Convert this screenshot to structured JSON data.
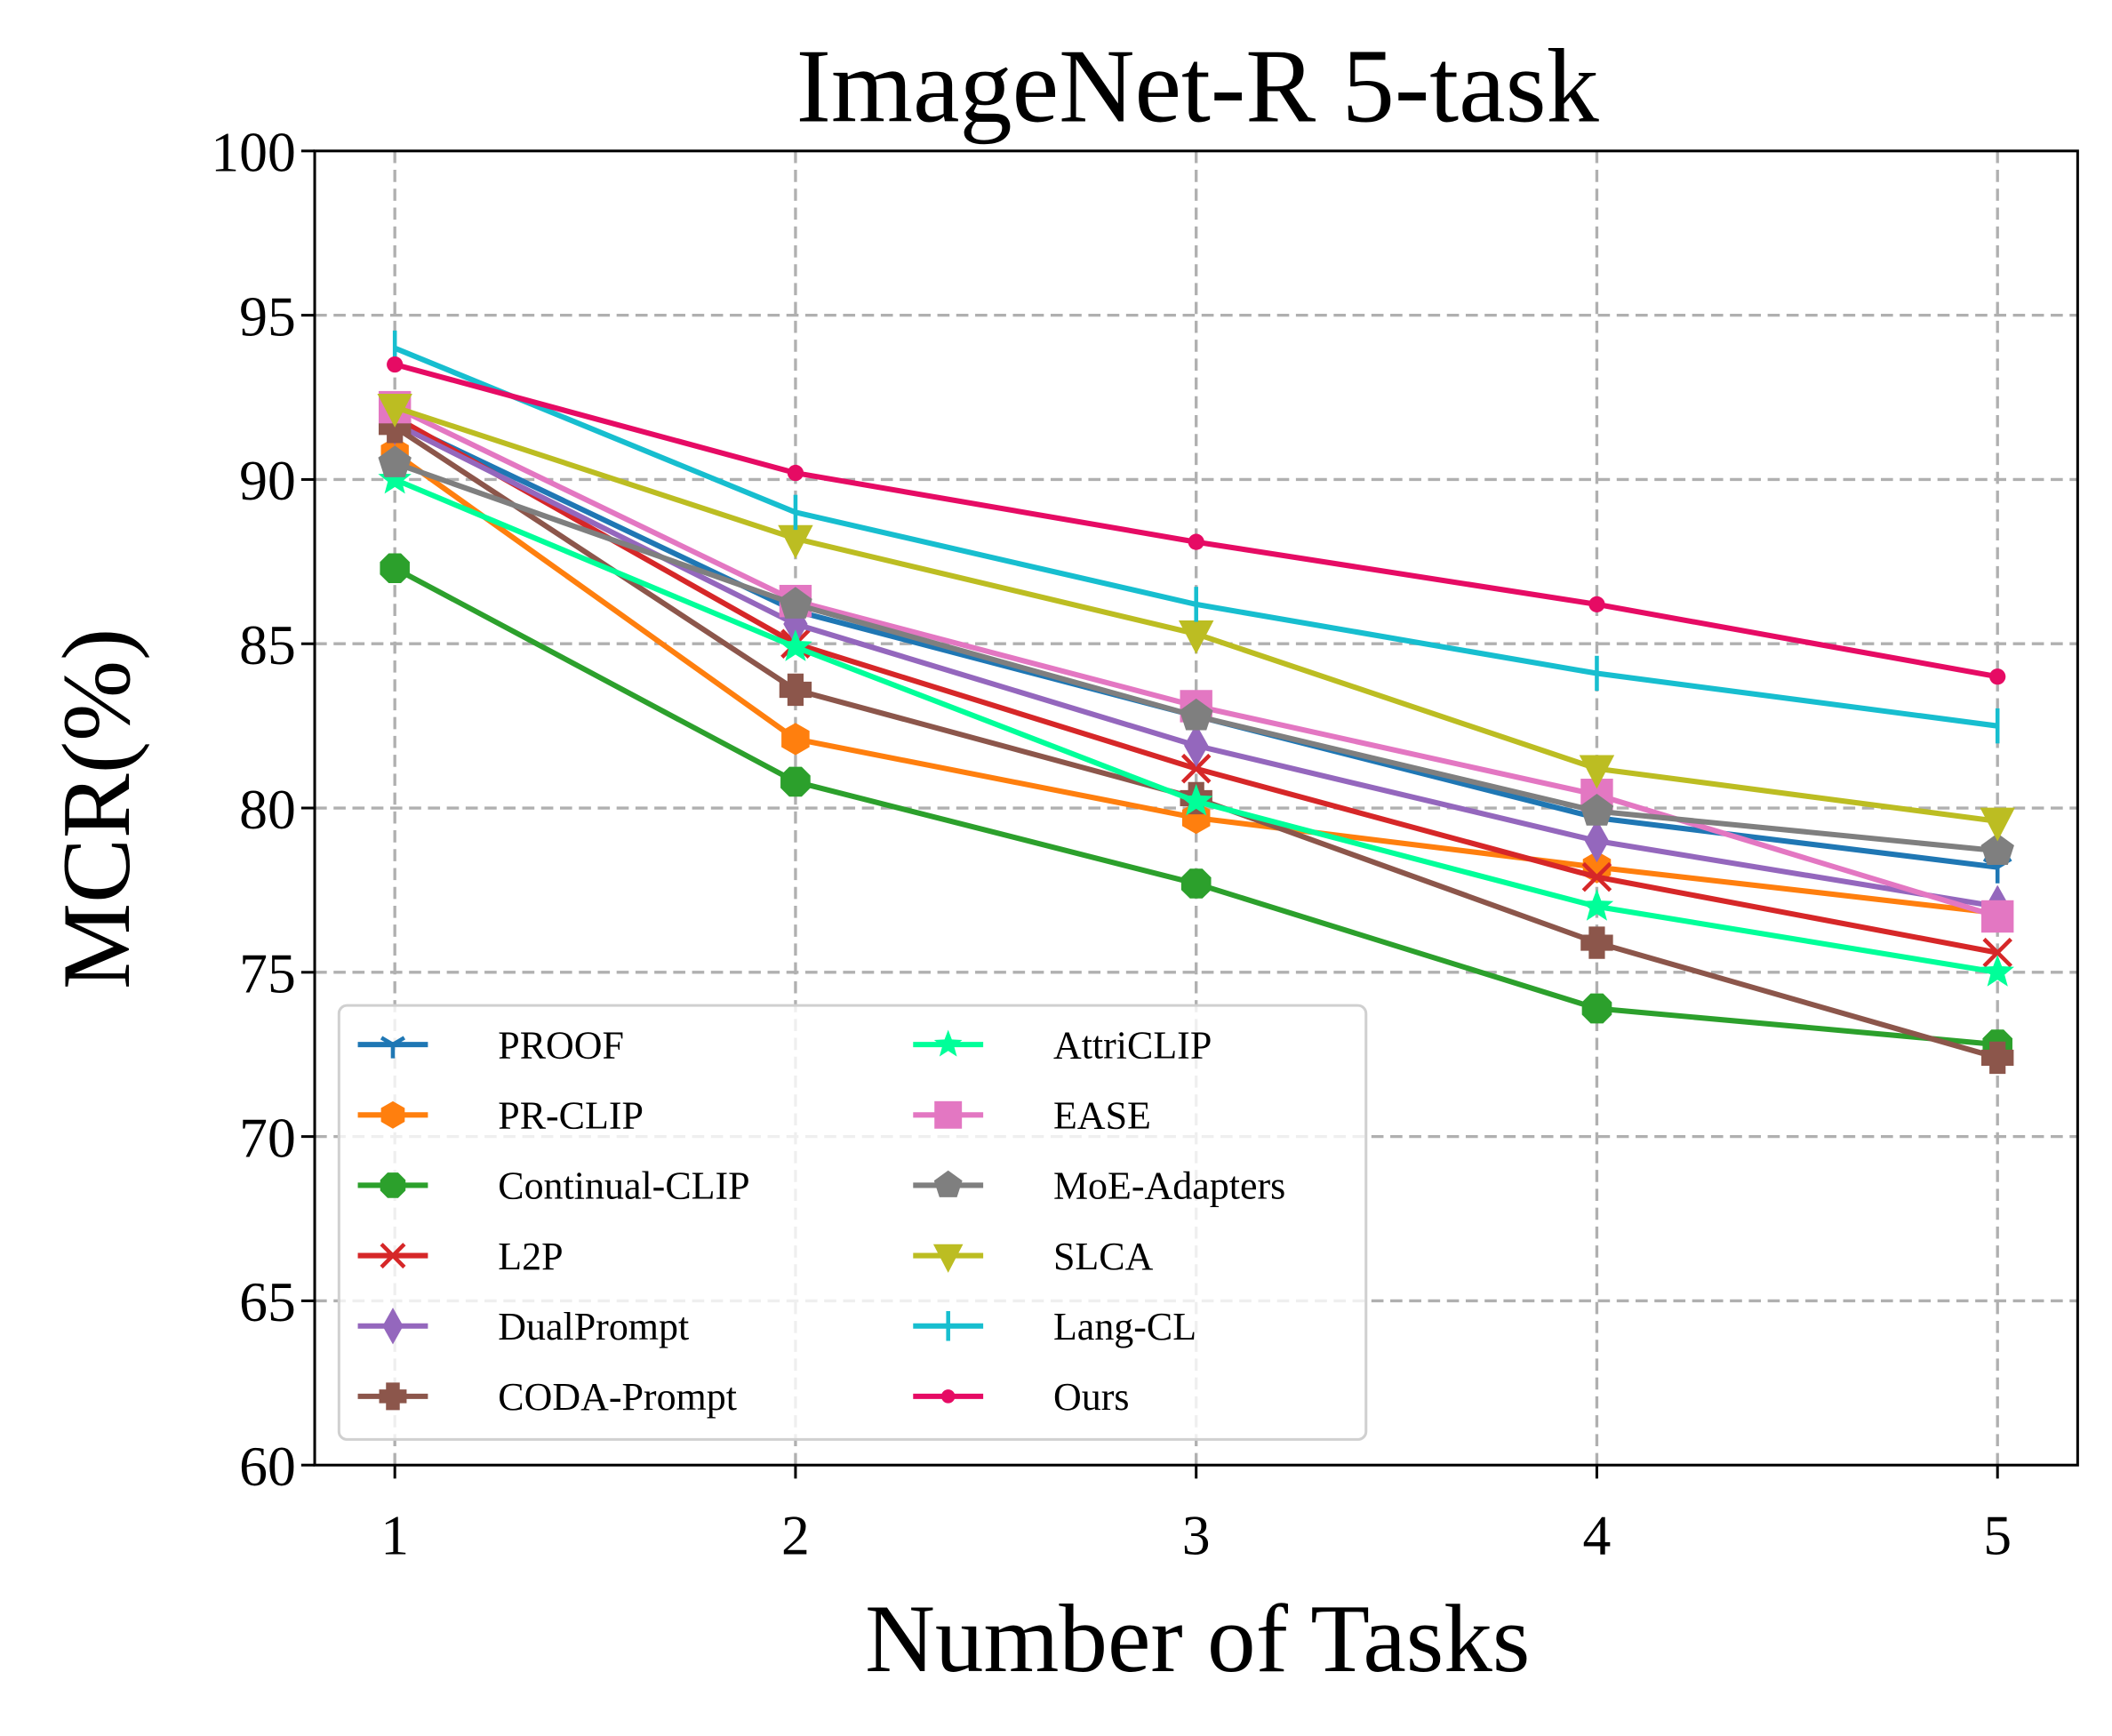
{
  "chart_data": {
    "type": "line",
    "title": "ImageNet-R 5-task",
    "xlabel": "Number of Tasks",
    "ylabel": "MCR(%)",
    "x": [
      1,
      2,
      3,
      4,
      5
    ],
    "x_tick_labels": [
      "1",
      "2",
      "3",
      "4",
      "5"
    ],
    "y_tick_labels": [
      "60",
      "65",
      "70",
      "75",
      "80",
      "85",
      "90",
      "95",
      "100"
    ],
    "ylim": [
      60,
      100
    ],
    "xlim": [
      0.8,
      5.2
    ],
    "grid": true,
    "legend_position": "lower left",
    "legend_columns": 2,
    "series": [
      {
        "name": "PROOF",
        "color": "#1f77b4",
        "marker": "tri_down",
        "values": [
          91.8,
          86.0,
          82.8,
          79.7,
          78.2
        ]
      },
      {
        "name": "PR-CLIP",
        "color": "#ff7f0e",
        "marker": "hexagon",
        "values": [
          90.8,
          82.1,
          79.7,
          78.2,
          76.8
        ]
      },
      {
        "name": "Continual-CLIP",
        "color": "#2ca02c",
        "marker": "octagon",
        "values": [
          87.3,
          80.8,
          77.7,
          73.9,
          72.8
        ]
      },
      {
        "name": "L2P",
        "color": "#d62728",
        "marker": "x",
        "values": [
          91.9,
          85.0,
          81.2,
          77.9,
          75.6
        ]
      },
      {
        "name": "DualPrompt",
        "color": "#9467bd",
        "marker": "thin_diamond",
        "values": [
          91.7,
          85.6,
          81.9,
          79.0,
          77.0
        ]
      },
      {
        "name": "CODA-Prompt",
        "color": "#8c564b",
        "marker": "plus_filled",
        "values": [
          91.6,
          83.6,
          80.3,
          75.9,
          72.4
        ]
      },
      {
        "name": "AttriCLIP",
        "color": "#00ff99",
        "marker": "star",
        "values": [
          90.0,
          84.9,
          80.2,
          77.0,
          75.0
        ]
      },
      {
        "name": "EASE",
        "color": "#e377c2",
        "marker": "square",
        "values": [
          92.2,
          86.3,
          83.1,
          80.4,
          76.7
        ]
      },
      {
        "name": "MoE-Adapters",
        "color": "#7f7f7f",
        "marker": "pentagon",
        "values": [
          90.5,
          86.2,
          82.8,
          79.9,
          78.7
        ]
      },
      {
        "name": "SLCA",
        "color": "#bcbd22",
        "marker": "triangle_down",
        "values": [
          92.2,
          88.2,
          85.3,
          81.2,
          79.6
        ]
      },
      {
        "name": "Lang-CL",
        "color": "#17becf",
        "marker": "vline",
        "values": [
          94.0,
          89.0,
          86.2,
          84.1,
          82.5
        ]
      },
      {
        "name": "Ours",
        "color": "#e60b64",
        "marker": "circle",
        "values": [
          93.5,
          90.2,
          88.1,
          86.2,
          84.0
        ]
      }
    ]
  }
}
